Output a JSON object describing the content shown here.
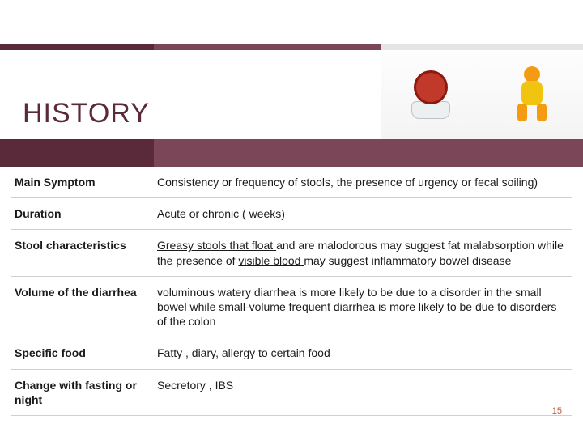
{
  "colors": {
    "dark_plum": "#5a2a3a",
    "mid_plum": "#7b4658",
    "light_gray": "#e7e4e6",
    "title_color": "#5a2a3a",
    "text_color": "#1a1a1a",
    "border_color": "#cfcfcf",
    "page_num_color": "#b85c38"
  },
  "title": "HISTORY",
  "page_number": "15",
  "rows": [
    {
      "label": "Main Symptom",
      "desc_html": "Consistency or frequency of stools, the presence of urgency or fecal soiling)"
    },
    {
      "label": "Duration",
      "desc_html": "Acute or chronic ( weeks)"
    },
    {
      "label": "Stool characteristics",
      "desc_html": "<span class='underline'>Greasy stools that float </span>and are malodorous may suggest fat malabsorption while the presence of <span class='underline'>visible blood </span>may suggest inflammatory bowel disease"
    },
    {
      "label": "Volume of the diarrhea",
      "desc_html": "voluminous watery diarrhea is more likely to be due to a disorder in the small bowel while small-volume frequent diarrhea is more likely to be due to disorders of the colon"
    },
    {
      "label": "Specific food",
      "desc_html": "Fatty , diary, allergy to certain food"
    },
    {
      "label": "Change with fasting or night",
      "desc_html": "Secretory , IBS"
    }
  ]
}
